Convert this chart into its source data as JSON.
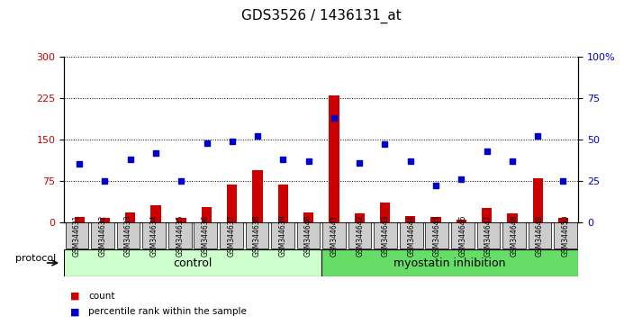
{
  "title": "GDS3526 / 1436131_at",
  "samples": [
    "GSM344631",
    "GSM344632",
    "GSM344633",
    "GSM344634",
    "GSM344635",
    "GSM344636",
    "GSM344637",
    "GSM344638",
    "GSM344639",
    "GSM344640",
    "GSM344641",
    "GSM344642",
    "GSM344643",
    "GSM344644",
    "GSM344645",
    "GSM344646",
    "GSM344647",
    "GSM344648",
    "GSM344649",
    "GSM344650"
  ],
  "counts": [
    10,
    8,
    18,
    30,
    8,
    28,
    68,
    95,
    68,
    18,
    230,
    16,
    35,
    12,
    9,
    4,
    26,
    16,
    80,
    8
  ],
  "percentile_ranks": [
    35,
    25,
    38,
    42,
    25,
    48,
    49,
    52,
    38,
    37,
    63,
    36,
    47,
    37,
    22,
    26,
    43,
    37,
    52,
    25
  ],
  "control_count": 10,
  "myostatin_count": 10,
  "protocol_label": "protocol",
  "control_label": "control",
  "myostatin_label": "myostatin inhibition",
  "y_left_label": "",
  "y_right_label": "",
  "bar_color": "#cc0000",
  "dot_color": "#0000cc",
  "left_yticks": [
    0,
    75,
    150,
    225,
    300
  ],
  "right_yticks": [
    0,
    25,
    50,
    75,
    100
  ],
  "ylim_left": [
    0,
    300
  ],
  "ylim_right": [
    0,
    100
  ],
  "background_color": "#ffffff",
  "plot_bg_color": "#ffffff",
  "grid_color": "#000000",
  "control_bg": "#ccffcc",
  "myostatin_bg": "#66dd66",
  "sample_bg": "#cccccc"
}
